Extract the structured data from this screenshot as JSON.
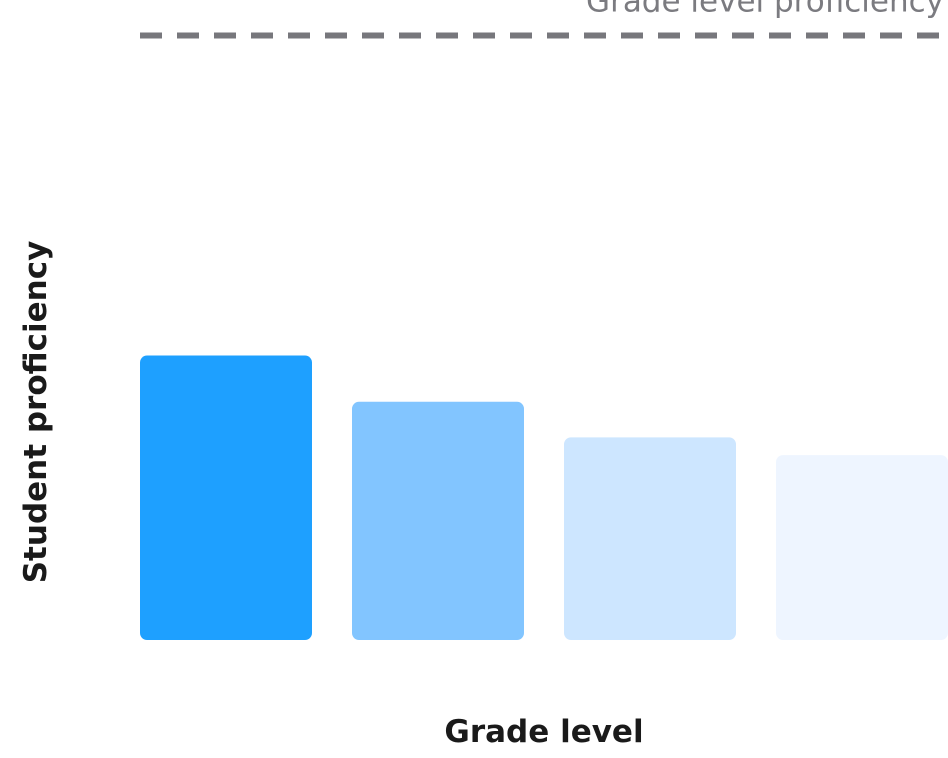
{
  "chart_data": {
    "type": "bar",
    "xlabel": "Grade level",
    "ylabel": "Student proficiency",
    "categories": [
      "",
      "",
      "",
      ""
    ],
    "values": [
      80,
      67,
      57,
      52
    ],
    "ylim": [
      0,
      180
    ],
    "grid": false,
    "colors": [
      "#1ea0ff",
      "#82c5ff",
      "#cde6ff",
      "#eef5ff"
    ],
    "reference_line": {
      "label": "Grade level proficiency",
      "value": 170,
      "style": "dashed",
      "color": "#77777c"
    }
  }
}
